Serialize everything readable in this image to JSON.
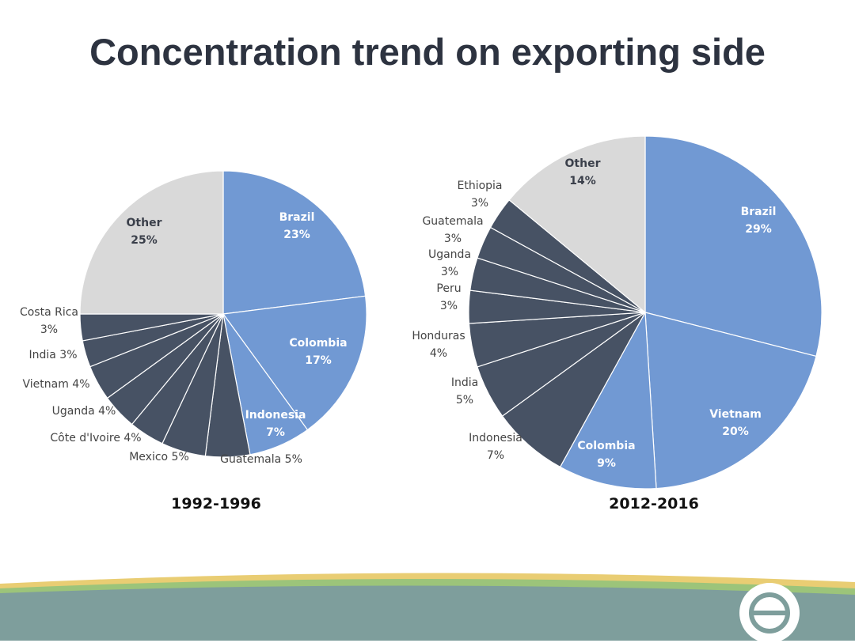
{
  "title": "Concentration trend on exporting side",
  "colors": {
    "blue": "#7199d3",
    "dark": "#475264",
    "grey": "#d9d9d9",
    "teal": "#7e9e9c",
    "band_green": "#9cc47a",
    "band_yellow": "#e9cd73"
  },
  "chart_data": [
    {
      "type": "pie",
      "label": "1992-1996",
      "slices": [
        {
          "name": "Brazil",
          "value": 23,
          "label": "Brazil\n23%",
          "style": "blue",
          "label_pos": "inside"
        },
        {
          "name": "Colombia",
          "value": 17,
          "label": "Colombia\n17%",
          "style": "blue",
          "label_pos": "inside"
        },
        {
          "name": "Indonesia",
          "value": 7,
          "label": "Indonesia\n7%",
          "style": "blue",
          "label_pos": "inside"
        },
        {
          "name": "Guatemala",
          "value": 5,
          "label": "Guatemala 5%",
          "style": "dark",
          "label_pos": "outside"
        },
        {
          "name": "Mexico",
          "value": 5,
          "label": "Mexico 5%",
          "style": "dark",
          "label_pos": "outside"
        },
        {
          "name": "Côte d'Ivoire",
          "value": 4,
          "label": "Côte d'Ivoire 4%",
          "style": "dark",
          "label_pos": "outside"
        },
        {
          "name": "Uganda",
          "value": 4,
          "label": "Uganda 4%",
          "style": "dark",
          "label_pos": "outside"
        },
        {
          "name": "Vietnam",
          "value": 4,
          "label": "Vietnam 4%",
          "style": "dark",
          "label_pos": "outside"
        },
        {
          "name": "India",
          "value": 3,
          "label": "India 3%",
          "style": "dark",
          "label_pos": "outside"
        },
        {
          "name": "Costa Rica",
          "value": 3,
          "label": "Costa Rica\n3%",
          "style": "dark",
          "label_pos": "outside"
        },
        {
          "name": "Other",
          "value": 25,
          "label": "Other\n25%",
          "style": "grey",
          "label_pos": "inside"
        }
      ]
    },
    {
      "type": "pie",
      "label": "2012-2016",
      "slices": [
        {
          "name": "Brazil",
          "value": 29,
          "label": "Brazil\n29%",
          "style": "blue",
          "label_pos": "inside"
        },
        {
          "name": "Vietnam",
          "value": 20,
          "label": "Vietnam\n20%",
          "style": "blue",
          "label_pos": "inside"
        },
        {
          "name": "Colombia",
          "value": 9,
          "label": "Colombia\n9%",
          "style": "blue",
          "label_pos": "inside"
        },
        {
          "name": "Indonesia",
          "value": 7,
          "label": "Indonesia\n7%",
          "style": "dark",
          "label_pos": "outside"
        },
        {
          "name": "India",
          "value": 5,
          "label": "India\n5%",
          "style": "dark",
          "label_pos": "outside"
        },
        {
          "name": "Honduras",
          "value": 4,
          "label": "Honduras\n4%",
          "style": "dark",
          "label_pos": "outside"
        },
        {
          "name": "Peru",
          "value": 3,
          "label": "Peru\n3%",
          "style": "dark",
          "label_pos": "outside"
        },
        {
          "name": "Uganda",
          "value": 3,
          "label": "Uganda\n3%",
          "style": "dark",
          "label_pos": "outside"
        },
        {
          "name": "Guatemala",
          "value": 3,
          "label": "Guatemala\n3%",
          "style": "dark",
          "label_pos": "outside"
        },
        {
          "name": "Ethiopia",
          "value": 3,
          "label": "Ethiopia\n3%",
          "style": "dark",
          "label_pos": "outside"
        },
        {
          "name": "Other",
          "value": 14,
          "label": "Other\n14%",
          "style": "grey",
          "label_pos": "inside"
        }
      ]
    }
  ]
}
